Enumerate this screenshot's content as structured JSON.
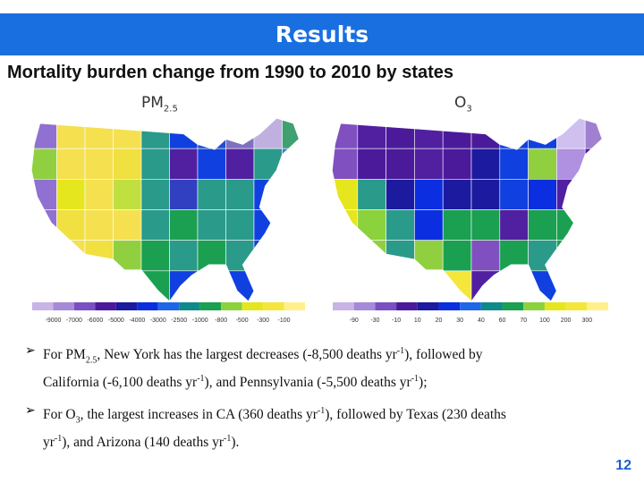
{
  "header": {
    "title": "Results"
  },
  "subtitle": "Mortality burden change from 1990 to 2010 by states",
  "maps": [
    {
      "label": "PM",
      "label_sub": "2.5",
      "legend": {
        "labels": [
          "-9000",
          "-7000",
          "-6000",
          "-5000",
          "-4000",
          "-3000",
          "-2500",
          "-1000",
          "-800",
          "-500",
          "-300",
          "-100"
        ],
        "colors": [
          "#c8b4e6",
          "#a58ad8",
          "#7a4fc2",
          "#4b1a9a",
          "#1c1a9e",
          "#0a2ee0",
          "#1f66e8",
          "#0e8a8a",
          "#1aa050",
          "#8cd23c",
          "#e6e61e",
          "#f5e63c",
          "#fff08c"
        ]
      }
    },
    {
      "label": "O",
      "label_sub": "3",
      "legend": {
        "labels": [
          "-90",
          "-30",
          "-10",
          "10",
          "20",
          "30",
          "40",
          "60",
          "70",
          "100",
          "200",
          "300"
        ],
        "colors": [
          "#c8b4e6",
          "#a58ad8",
          "#7a4fc2",
          "#4b1a9a",
          "#1c1a9e",
          "#0a2ee0",
          "#1f66e8",
          "#0e8a8a",
          "#1aa050",
          "#8cd23c",
          "#e6e61e",
          "#f5e63c",
          "#fff08c"
        ]
      }
    }
  ],
  "bullets": [
    {
      "parts": [
        "For PM",
        "2.5",
        ", New York has the largest decreases (-8,500 deaths yr",
        "-1",
        "), followed by",
        "California (-6,100 deaths yr",
        "-1",
        "), and  Pennsylvania (-5,500 deaths yr",
        "-1",
        ");"
      ]
    },
    {
      "parts": [
        "For O",
        "3",
        ", the largest increases in CA (360 deaths yr",
        "-1",
        "), followed by Texas (230 deaths",
        "yr",
        "-1",
        "), and Arizona (140 deaths yr",
        "-1",
        ")."
      ]
    }
  ],
  "page_number": "12"
}
